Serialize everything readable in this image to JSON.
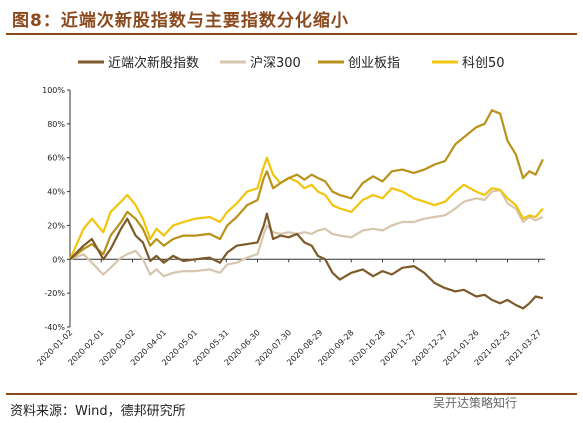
{
  "header": {
    "title": "图8：近端次新股指数与主要指数分化缩小"
  },
  "footer": {
    "source": "资料来源：Wind，德邦研究所",
    "watermark": "吴开达策略知行"
  },
  "colors": {
    "title": "#8b4a1e",
    "rule": "#8b4a1e",
    "near_ipo": "#7d5a2a",
    "hs300": "#d7c6ae",
    "chinext": "#b8921a",
    "star50": "#f2c40c"
  },
  "chart_data": {
    "type": "line",
    "title": "图8：近端次新股指数与主要指数分化缩小",
    "xlabel": "",
    "ylabel": "",
    "x_range": [
      "2020-01-02",
      "2021-04-02"
    ],
    "ylim": [
      -40,
      100
    ],
    "yticks": [
      "100%",
      "80%",
      "60%",
      "40%",
      "20%",
      "0%",
      "-20%",
      "-40%"
    ],
    "ytick_values": [
      100,
      80,
      60,
      40,
      20,
      0,
      -20,
      -40
    ],
    "xticks": [
      "2020-01-02",
      "2020-02-01",
      "2020-03-02",
      "2020-04-01",
      "2020-05-01",
      "2020-05-31",
      "2020-06-30",
      "2020-07-30",
      "2020-08-29",
      "2020-09-28",
      "2020-10-28",
      "2020-11-27",
      "2020-12-27",
      "2021-01-26",
      "2021-02-25",
      "2021-03-27"
    ],
    "grid": false,
    "legend_position": "top",
    "series": [
      {
        "name": "近端次新股指数",
        "color": "#7d5a2a",
        "points": [
          [
            "2020-01-02",
            0
          ],
          [
            "2020-01-15",
            8
          ],
          [
            "2020-01-23",
            12
          ],
          [
            "2020-02-03",
            0
          ],
          [
            "2020-02-10",
            6
          ],
          [
            "2020-02-20",
            18
          ],
          [
            "2020-02-26",
            24
          ],
          [
            "2020-03-05",
            14
          ],
          [
            "2020-03-12",
            10
          ],
          [
            "2020-03-19",
            -1
          ],
          [
            "2020-03-25",
            2
          ],
          [
            "2020-04-01",
            -2
          ],
          [
            "2020-04-10",
            2
          ],
          [
            "2020-04-20",
            -1
          ],
          [
            "2020-05-01",
            0
          ],
          [
            "2020-05-15",
            1
          ],
          [
            "2020-05-25",
            -2
          ],
          [
            "2020-06-01",
            4
          ],
          [
            "2020-06-10",
            8
          ],
          [
            "2020-06-20",
            9
          ],
          [
            "2020-06-30",
            10
          ],
          [
            "2020-07-06",
            20
          ],
          [
            "2020-07-09",
            27
          ],
          [
            "2020-07-15",
            12
          ],
          [
            "2020-07-22",
            14
          ],
          [
            "2020-07-30",
            13
          ],
          [
            "2020-08-07",
            15
          ],
          [
            "2020-08-14",
            10
          ],
          [
            "2020-08-21",
            8
          ],
          [
            "2020-08-27",
            2
          ],
          [
            "2020-09-03",
            0
          ],
          [
            "2020-09-10",
            -8
          ],
          [
            "2020-09-17",
            -12
          ],
          [
            "2020-09-28",
            -8
          ],
          [
            "2020-10-09",
            -6
          ],
          [
            "2020-10-19",
            -10
          ],
          [
            "2020-10-28",
            -7
          ],
          [
            "2020-11-06",
            -9
          ],
          [
            "2020-11-16",
            -5
          ],
          [
            "2020-11-27",
            -4
          ],
          [
            "2020-12-07",
            -8
          ],
          [
            "2020-12-17",
            -14
          ],
          [
            "2020-12-27",
            -17
          ],
          [
            "2021-01-06",
            -19
          ],
          [
            "2021-01-14",
            -18
          ],
          [
            "2021-01-26",
            -22
          ],
          [
            "2021-02-03",
            -21
          ],
          [
            "2021-02-10",
            -24
          ],
          [
            "2021-02-18",
            -26
          ],
          [
            "2021-02-25",
            -24
          ],
          [
            "2021-03-05",
            -27
          ],
          [
            "2021-03-12",
            -29
          ],
          [
            "2021-03-18",
            -26
          ],
          [
            "2021-03-24",
            -22
          ],
          [
            "2021-03-31",
            -23
          ]
        ]
      },
      {
        "name": "沪深300",
        "color": "#d7c6ae",
        "points": [
          [
            "2020-01-02",
            0
          ],
          [
            "2020-01-15",
            3
          ],
          [
            "2020-01-23",
            -2
          ],
          [
            "2020-02-03",
            -9
          ],
          [
            "2020-02-10",
            -5
          ],
          [
            "2020-02-20",
            1
          ],
          [
            "2020-02-26",
            3
          ],
          [
            "2020-03-05",
            5
          ],
          [
            "2020-03-12",
            0
          ],
          [
            "2020-03-19",
            -9
          ],
          [
            "2020-03-25",
            -6
          ],
          [
            "2020-04-01",
            -10
          ],
          [
            "2020-04-10",
            -8
          ],
          [
            "2020-04-20",
            -7
          ],
          [
            "2020-05-01",
            -7
          ],
          [
            "2020-05-15",
            -6
          ],
          [
            "2020-05-25",
            -8
          ],
          [
            "2020-06-01",
            -3
          ],
          [
            "2020-06-10",
            -2
          ],
          [
            "2020-06-20",
            1
          ],
          [
            "2020-06-30",
            3
          ],
          [
            "2020-07-06",
            15
          ],
          [
            "2020-07-09",
            20
          ],
          [
            "2020-07-15",
            16
          ],
          [
            "2020-07-22",
            15
          ],
          [
            "2020-07-30",
            16
          ],
          [
            "2020-08-07",
            15
          ],
          [
            "2020-08-14",
            16
          ],
          [
            "2020-08-21",
            15
          ],
          [
            "2020-08-27",
            17
          ],
          [
            "2020-09-03",
            18
          ],
          [
            "2020-09-10",
            15
          ],
          [
            "2020-09-17",
            14
          ],
          [
            "2020-09-28",
            13
          ],
          [
            "2020-10-09",
            17
          ],
          [
            "2020-10-19",
            18
          ],
          [
            "2020-10-28",
            17
          ],
          [
            "2020-11-06",
            20
          ],
          [
            "2020-11-16",
            22
          ],
          [
            "2020-11-27",
            22
          ],
          [
            "2020-12-07",
            24
          ],
          [
            "2020-12-17",
            25
          ],
          [
            "2020-12-27",
            26
          ],
          [
            "2021-01-06",
            30
          ],
          [
            "2021-01-14",
            34
          ],
          [
            "2021-01-26",
            36
          ],
          [
            "2021-02-03",
            35
          ],
          [
            "2021-02-10",
            40
          ],
          [
            "2021-02-18",
            41
          ],
          [
            "2021-02-25",
            33
          ],
          [
            "2021-03-05",
            30
          ],
          [
            "2021-03-12",
            22
          ],
          [
            "2021-03-18",
            25
          ],
          [
            "2021-03-24",
            23
          ],
          [
            "2021-03-31",
            25
          ]
        ]
      },
      {
        "name": "创业板指",
        "color": "#b8921a",
        "points": [
          [
            "2020-01-02",
            0
          ],
          [
            "2020-01-15",
            6
          ],
          [
            "2020-01-23",
            9
          ],
          [
            "2020-02-03",
            3
          ],
          [
            "2020-02-10",
            14
          ],
          [
            "2020-02-20",
            22
          ],
          [
            "2020-02-26",
            28
          ],
          [
            "2020-03-05",
            24
          ],
          [
            "2020-03-12",
            18
          ],
          [
            "2020-03-19",
            8
          ],
          [
            "2020-03-25",
            12
          ],
          [
            "2020-04-01",
            8
          ],
          [
            "2020-04-10",
            12
          ],
          [
            "2020-04-20",
            14
          ],
          [
            "2020-05-01",
            14
          ],
          [
            "2020-05-15",
            15
          ],
          [
            "2020-05-25",
            12
          ],
          [
            "2020-06-01",
            20
          ],
          [
            "2020-06-10",
            25
          ],
          [
            "2020-06-20",
            32
          ],
          [
            "2020-06-30",
            35
          ],
          [
            "2020-07-06",
            48
          ],
          [
            "2020-07-09",
            52
          ],
          [
            "2020-07-15",
            42
          ],
          [
            "2020-07-22",
            45
          ],
          [
            "2020-07-30",
            48
          ],
          [
            "2020-08-07",
            50
          ],
          [
            "2020-08-14",
            47
          ],
          [
            "2020-08-21",
            50
          ],
          [
            "2020-08-27",
            48
          ],
          [
            "2020-09-03",
            46
          ],
          [
            "2020-09-10",
            40
          ],
          [
            "2020-09-17",
            38
          ],
          [
            "2020-09-28",
            36
          ],
          [
            "2020-10-09",
            45
          ],
          [
            "2020-10-19",
            49
          ],
          [
            "2020-10-28",
            46
          ],
          [
            "2020-11-06",
            52
          ],
          [
            "2020-11-16",
            53
          ],
          [
            "2020-11-27",
            51
          ],
          [
            "2020-12-07",
            53
          ],
          [
            "2020-12-17",
            56
          ],
          [
            "2020-12-27",
            58
          ],
          [
            "2021-01-06",
            68
          ],
          [
            "2021-01-14",
            72
          ],
          [
            "2021-01-26",
            78
          ],
          [
            "2021-02-03",
            80
          ],
          [
            "2021-02-10",
            88
          ],
          [
            "2021-02-18",
            86
          ],
          [
            "2021-02-25",
            70
          ],
          [
            "2021-03-05",
            62
          ],
          [
            "2021-03-12",
            48
          ],
          [
            "2021-03-18",
            52
          ],
          [
            "2021-03-24",
            50
          ],
          [
            "2021-03-31",
            59
          ]
        ]
      },
      {
        "name": "科创50",
        "color": "#f2c40c",
        "points": [
          [
            "2020-01-02",
            0
          ],
          [
            "2020-01-15",
            18
          ],
          [
            "2020-01-23",
            24
          ],
          [
            "2020-02-03",
            16
          ],
          [
            "2020-02-10",
            28
          ],
          [
            "2020-02-20",
            34
          ],
          [
            "2020-02-26",
            38
          ],
          [
            "2020-03-05",
            32
          ],
          [
            "2020-03-12",
            24
          ],
          [
            "2020-03-19",
            12
          ],
          [
            "2020-03-25",
            18
          ],
          [
            "2020-04-01",
            14
          ],
          [
            "2020-04-10",
            20
          ],
          [
            "2020-04-20",
            22
          ],
          [
            "2020-05-01",
            24
          ],
          [
            "2020-05-15",
            25
          ],
          [
            "2020-05-25",
            22
          ],
          [
            "2020-06-01",
            28
          ],
          [
            "2020-06-10",
            33
          ],
          [
            "2020-06-20",
            40
          ],
          [
            "2020-06-30",
            42
          ],
          [
            "2020-07-06",
            55
          ],
          [
            "2020-07-09",
            60
          ],
          [
            "2020-07-15",
            50
          ],
          [
            "2020-07-22",
            45
          ],
          [
            "2020-07-30",
            48
          ],
          [
            "2020-08-07",
            46
          ],
          [
            "2020-08-14",
            42
          ],
          [
            "2020-08-21",
            44
          ],
          [
            "2020-08-27",
            40
          ],
          [
            "2020-09-03",
            38
          ],
          [
            "2020-09-10",
            32
          ],
          [
            "2020-09-17",
            30
          ],
          [
            "2020-09-28",
            28
          ],
          [
            "2020-10-09",
            35
          ],
          [
            "2020-10-19",
            38
          ],
          [
            "2020-10-28",
            36
          ],
          [
            "2020-11-06",
            42
          ],
          [
            "2020-11-16",
            40
          ],
          [
            "2020-11-27",
            36
          ],
          [
            "2020-12-07",
            34
          ],
          [
            "2020-12-17",
            32
          ],
          [
            "2020-12-27",
            34
          ],
          [
            "2021-01-06",
            40
          ],
          [
            "2021-01-14",
            44
          ],
          [
            "2021-01-26",
            40
          ],
          [
            "2021-02-03",
            38
          ],
          [
            "2021-02-10",
            42
          ],
          [
            "2021-02-18",
            41
          ],
          [
            "2021-02-25",
            36
          ],
          [
            "2021-03-05",
            32
          ],
          [
            "2021-03-12",
            24
          ],
          [
            "2021-03-18",
            26
          ],
          [
            "2021-03-24",
            25
          ],
          [
            "2021-03-31",
            30
          ]
        ]
      }
    ]
  }
}
